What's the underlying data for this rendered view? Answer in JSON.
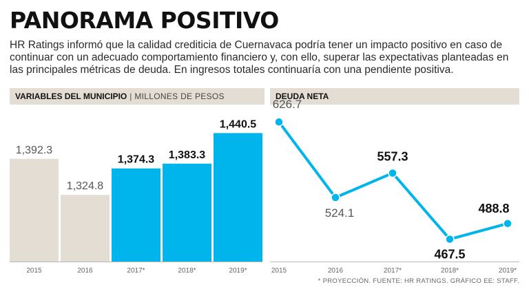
{
  "headline": "PANORAMA POSITIVO",
  "intro": "HR Ratings informó que la calidad crediticia de Cuernavaca podría tener un impacto positivo en caso de continuar con un adecuado comportamiento financiero y, con ello, superar las expectativas planteadas en las principales métricas de deuda. En ingresos totales continuaría con una pendiente positiva.",
  "footnote": "* PROYECCIÓN.  FUENTE: HR RATINGS.  GRÁFICO EE: STAFF.",
  "colors": {
    "historic": "#e4ddd4",
    "projection": "#00b4ec",
    "line": "#00b4ec",
    "baseline": "#b5b5b5"
  },
  "chart_data": [
    {
      "type": "bar",
      "title": "VARIABLES DEL MUNICIPIO",
      "separator": "|",
      "subtitle": "MILLONES DE PESOS",
      "categories": [
        "2015",
        "2016",
        "2017*",
        "2018*",
        "2019*"
      ],
      "values": [
        1392.3,
        1324.8,
        1374.3,
        1383.3,
        1440.5
      ],
      "value_labels": [
        "1,392.3",
        "1,324.8",
        "1,374.3",
        "1,383.3",
        "1,440.5"
      ],
      "projected": [
        false,
        false,
        true,
        true,
        true
      ],
      "ylim": [
        1200,
        1450
      ]
    },
    {
      "type": "line",
      "title": "DEUDA NETA",
      "categories": [
        "2015",
        "2016",
        "2017*",
        "2018*",
        "2019*"
      ],
      "values": [
        626.7,
        524.1,
        557.3,
        467.5,
        488.8
      ],
      "value_labels": [
        "626.7",
        "524.1",
        "557.3",
        "467.5",
        "488.8"
      ],
      "projected": [
        false,
        false,
        true,
        true,
        true
      ],
      "ylim": [
        440,
        640
      ]
    }
  ]
}
